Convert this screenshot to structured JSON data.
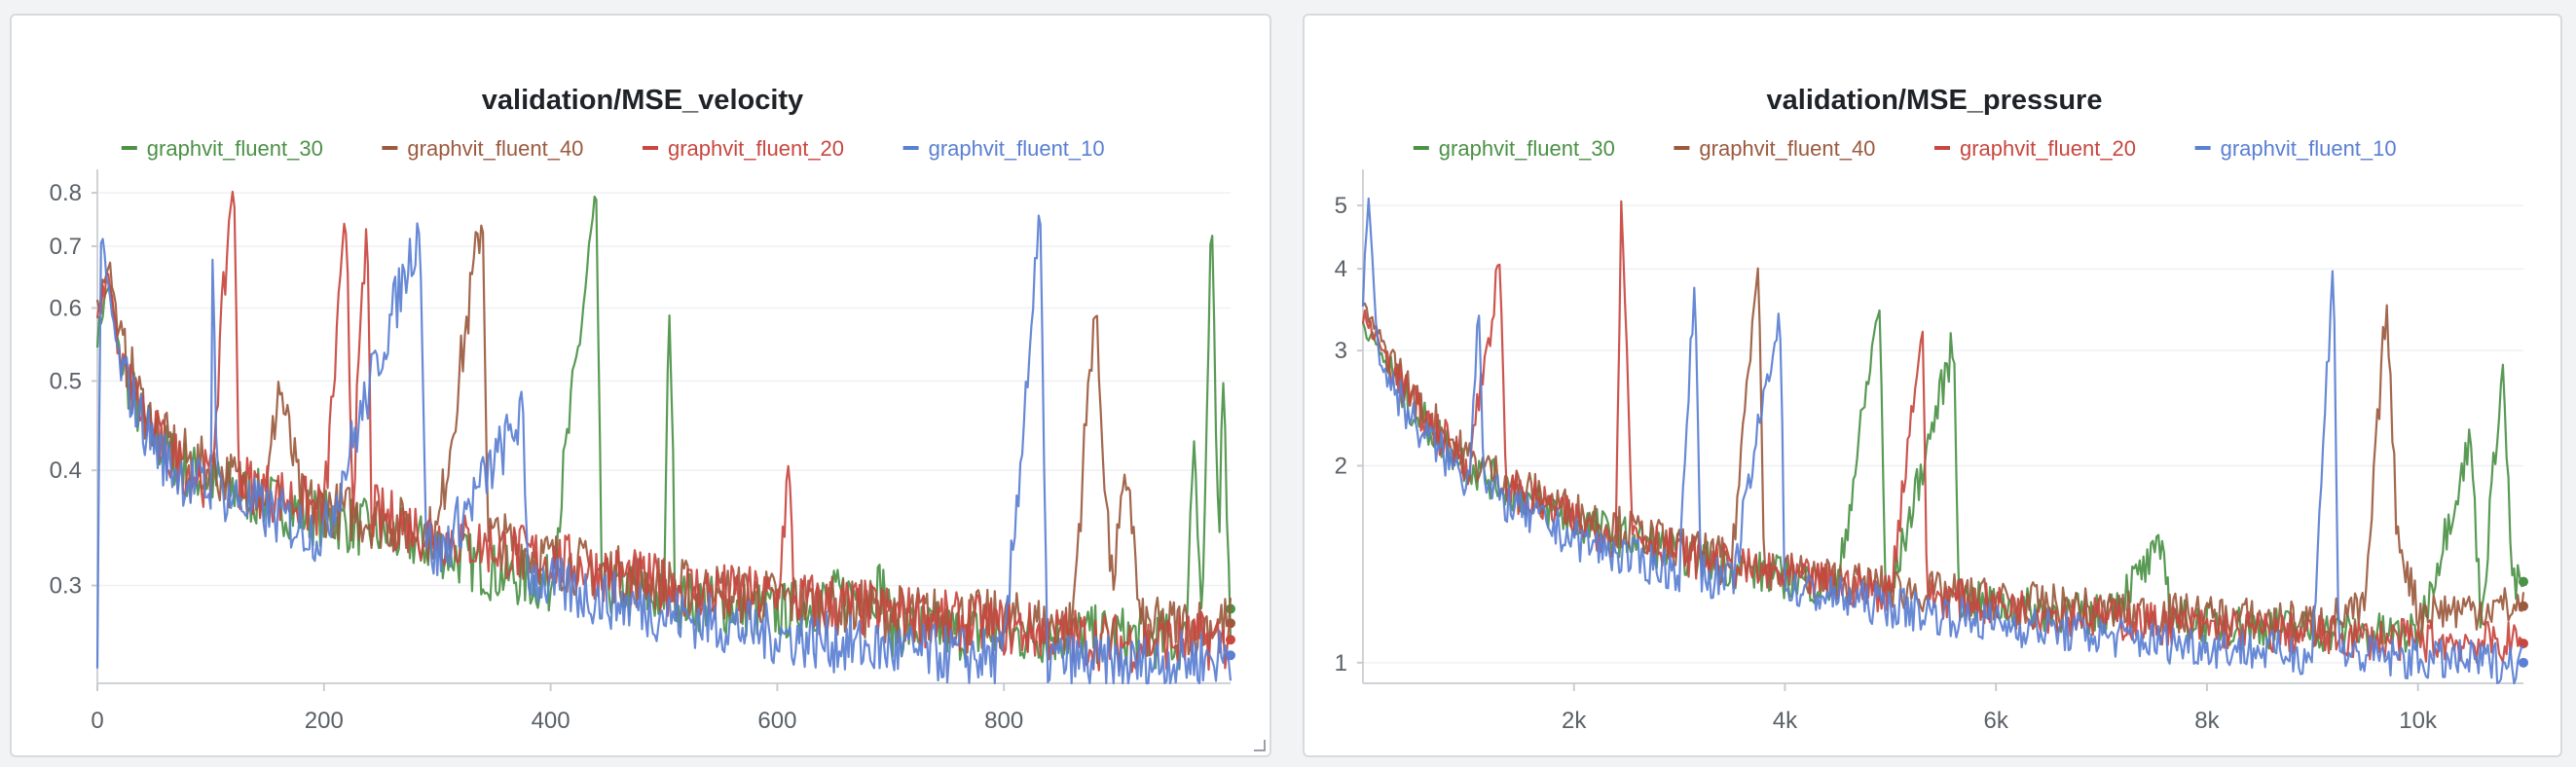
{
  "chart_data": [
    {
      "type": "line",
      "title": "validation/MSE_velocity",
      "xlabel": "",
      "ylabel": "",
      "y_scale": "log",
      "xlim": [
        0,
        1000
      ],
      "ylim": [
        0.235,
        0.84
      ],
      "x_ticks": [
        0,
        200,
        400,
        600,
        800
      ],
      "x_tick_labels": [
        "0",
        "200",
        "400",
        "600",
        "800"
      ],
      "y_ticks": [
        0.3,
        0.4,
        0.5,
        0.6,
        0.7,
        0.8
      ],
      "y_tick_labels": [
        "0.3",
        "0.4",
        "0.5",
        "0.6",
        "0.7",
        "0.8"
      ],
      "grid": true,
      "legend_position": "top",
      "series": [
        {
          "name": "graphvit_fluent_30",
          "color": "#4b9146",
          "points": [
            [
              0,
              0.56
            ],
            [
              10,
              0.64
            ],
            [
              20,
              0.53
            ],
            [
              40,
              0.45
            ],
            [
              60,
              0.42
            ],
            [
              80,
              0.4
            ],
            [
              100,
              0.39
            ],
            [
              120,
              0.38
            ],
            [
              150,
              0.37
            ],
            [
              180,
              0.36
            ],
            [
              220,
              0.35
            ],
            [
              260,
              0.34
            ],
            [
              300,
              0.33
            ],
            [
              350,
              0.31
            ],
            [
              400,
              0.3
            ],
            [
              440,
              0.79
            ],
            [
              445,
              0.3
            ],
            [
              500,
              0.29
            ],
            [
              505,
              0.64
            ],
            [
              510,
              0.29
            ],
            [
              600,
              0.28
            ],
            [
              695,
              0.3
            ],
            [
              700,
              0.27
            ],
            [
              800,
              0.265
            ],
            [
              900,
              0.265
            ],
            [
              960,
              0.26
            ],
            [
              968,
              0.45
            ],
            [
              975,
              0.27
            ],
            [
              983,
              0.76
            ],
            [
              990,
              0.3
            ],
            [
              993,
              0.53
            ],
            [
              1000,
              0.283
            ]
          ]
        },
        {
          "name": "graphvit_fluent_40",
          "color": "#9b5a3e",
          "points": [
            [
              0,
              0.6
            ],
            [
              10,
              0.68
            ],
            [
              20,
              0.55
            ],
            [
              40,
              0.47
            ],
            [
              60,
              0.43
            ],
            [
              80,
              0.41
            ],
            [
              100,
              0.4
            ],
            [
              120,
              0.39
            ],
            [
              150,
              0.38
            ],
            [
              160,
              0.5
            ],
            [
              180,
              0.37
            ],
            [
              220,
              0.36
            ],
            [
              260,
              0.35
            ],
            [
              300,
              0.34
            ],
            [
              340,
              0.77
            ],
            [
              345,
              0.34
            ],
            [
              400,
              0.32
            ],
            [
              500,
              0.3
            ],
            [
              600,
              0.29
            ],
            [
              700,
              0.28
            ],
            [
              800,
              0.275
            ],
            [
              860,
              0.27
            ],
            [
              880,
              0.61
            ],
            [
              895,
              0.3
            ],
            [
              910,
              0.4
            ],
            [
              920,
              0.27
            ],
            [
              1000,
              0.273
            ]
          ]
        },
        {
          "name": "graphvit_fluent_20",
          "color": "#c8473f",
          "points": [
            [
              0,
              0.58
            ],
            [
              10,
              0.66
            ],
            [
              20,
              0.52
            ],
            [
              40,
              0.46
            ],
            [
              60,
              0.42
            ],
            [
              80,
              0.4
            ],
            [
              100,
              0.39
            ],
            [
              120,
              0.86
            ],
            [
              125,
              0.39
            ],
            [
              150,
              0.38
            ],
            [
              200,
              0.36
            ],
            [
              220,
              0.76
            ],
            [
              225,
              0.37
            ],
            [
              238,
              0.75
            ],
            [
              242,
              0.36
            ],
            [
              300,
              0.34
            ],
            [
              400,
              0.32
            ],
            [
              500,
              0.3
            ],
            [
              600,
              0.29
            ],
            [
              610,
              0.4
            ],
            [
              615,
              0.29
            ],
            [
              700,
              0.28
            ],
            [
              800,
              0.27
            ],
            [
              900,
              0.26
            ],
            [
              1000,
              0.262
            ]
          ]
        },
        {
          "name": "graphvit_fluent_10",
          "color": "#5a7fd3",
          "points": [
            [
              0,
              0.25
            ],
            [
              3,
              0.72
            ],
            [
              10,
              0.62
            ],
            [
              20,
              0.52
            ],
            [
              40,
              0.45
            ],
            [
              60,
              0.41
            ],
            [
              80,
              0.39
            ],
            [
              100,
              0.38
            ],
            [
              102,
              0.74
            ],
            [
              106,
              0.38
            ],
            [
              150,
              0.36
            ],
            [
              200,
              0.34
            ],
            [
              285,
              0.74
            ],
            [
              290,
              0.34
            ],
            [
              300,
              0.32
            ],
            [
              375,
              0.46
            ],
            [
              380,
              0.31
            ],
            [
              400,
              0.3
            ],
            [
              500,
              0.28
            ],
            [
              600,
              0.265
            ],
            [
              700,
              0.255
            ],
            [
              800,
              0.25
            ],
            [
              832,
              0.75
            ],
            [
              838,
              0.25
            ],
            [
              900,
              0.245
            ],
            [
              1000,
              0.252
            ]
          ]
        }
      ]
    },
    {
      "type": "line",
      "title": "validation/MSE_pressure",
      "xlabel": "",
      "ylabel": "",
      "y_scale": "log",
      "xlim": [
        0,
        11000
      ],
      "ylim": [
        0.93,
        5.6
      ],
      "x_ticks": [
        2000,
        4000,
        6000,
        8000,
        10000
      ],
      "x_tick_labels": [
        "2k",
        "4k",
        "6k",
        "8k",
        "10k"
      ],
      "y_ticks": [
        1,
        2,
        3,
        4,
        5
      ],
      "y_tick_labels": [
        "1",
        "2",
        "3",
        "4",
        "5"
      ],
      "grid": true,
      "legend_position": "top",
      "series": [
        {
          "name": "graphvit_fluent_30",
          "color": "#4b9146",
          "points": [
            [
              0,
              3.3
            ],
            [
              500,
              2.4
            ],
            [
              1000,
              2.0
            ],
            [
              1500,
              1.8
            ],
            [
              2000,
              1.65
            ],
            [
              2500,
              1.55
            ],
            [
              3000,
              1.47
            ],
            [
              3500,
              1.4
            ],
            [
              4000,
              1.35
            ],
            [
              4500,
              1.3
            ],
            [
              4900,
              3.6
            ],
            [
              4950,
              1.3
            ],
            [
              5000,
              1.27
            ],
            [
              5600,
              3.1
            ],
            [
              5650,
              1.25
            ],
            [
              6000,
              1.22
            ],
            [
              7000,
              1.18
            ],
            [
              7600,
              1.5
            ],
            [
              7650,
              1.17
            ],
            [
              8000,
              1.15
            ],
            [
              9000,
              1.12
            ],
            [
              10000,
              1.1
            ],
            [
              10500,
              2.2
            ],
            [
              10600,
              1.15
            ],
            [
              10800,
              2.9
            ],
            [
              10900,
              1.3
            ],
            [
              11000,
              1.33
            ]
          ]
        },
        {
          "name": "graphvit_fluent_40",
          "color": "#9b5a3e",
          "points": [
            [
              0,
              3.5
            ],
            [
              500,
              2.5
            ],
            [
              1000,
              2.05
            ],
            [
              1500,
              1.85
            ],
            [
              2000,
              1.7
            ],
            [
              2500,
              1.6
            ],
            [
              3000,
              1.5
            ],
            [
              3500,
              1.43
            ],
            [
              3750,
              4.4
            ],
            [
              3800,
              1.4
            ],
            [
              4000,
              1.38
            ],
            [
              5000,
              1.3
            ],
            [
              6000,
              1.25
            ],
            [
              7000,
              1.2
            ],
            [
              8000,
              1.18
            ],
            [
              9000,
              1.15
            ],
            [
              9500,
              1.2
            ],
            [
              9700,
              3.6
            ],
            [
              9800,
              1.6
            ],
            [
              10000,
              1.2
            ],
            [
              11000,
              1.22
            ]
          ]
        },
        {
          "name": "graphvit_fluent_20",
          "color": "#c8473f",
          "points": [
            [
              0,
              3.4
            ],
            [
              500,
              2.45
            ],
            [
              1000,
              2.0
            ],
            [
              1300,
              4.1
            ],
            [
              1350,
              1.9
            ],
            [
              1500,
              1.8
            ],
            [
              2000,
              1.65
            ],
            [
              2400,
              1.55
            ],
            [
              2450,
              5.6
            ],
            [
              2550,
              1.6
            ],
            [
              3000,
              1.47
            ],
            [
              3500,
              1.4
            ],
            [
              4000,
              1.35
            ],
            [
              5000,
              1.28
            ],
            [
              5300,
              3.3
            ],
            [
              5350,
              1.27
            ],
            [
              6000,
              1.22
            ],
            [
              7000,
              1.17
            ],
            [
              8000,
              1.13
            ],
            [
              9000,
              1.1
            ],
            [
              10000,
              1.08
            ],
            [
              11000,
              1.07
            ]
          ]
        },
        {
          "name": "graphvit_fluent_10",
          "color": "#5a7fd3",
          "points": [
            [
              0,
              3.6
            ],
            [
              50,
              5.2
            ],
            [
              150,
              2.9
            ],
            [
              500,
              2.3
            ],
            [
              1000,
              1.9
            ],
            [
              1100,
              3.6
            ],
            [
              1150,
              1.85
            ],
            [
              1500,
              1.7
            ],
            [
              2000,
              1.55
            ],
            [
              2500,
              1.45
            ],
            [
              3000,
              1.38
            ],
            [
              3150,
              4.0
            ],
            [
              3200,
              1.37
            ],
            [
              3500,
              1.32
            ],
            [
              3950,
              3.5
            ],
            [
              4000,
              1.3
            ],
            [
              5000,
              1.22
            ],
            [
              6000,
              1.15
            ],
            [
              7000,
              1.1
            ],
            [
              8000,
              1.06
            ],
            [
              9000,
              1.03
            ],
            [
              9200,
              4.3
            ],
            [
              9250,
              1.03
            ],
            [
              10000,
              1.01
            ],
            [
              11000,
              1.0
            ]
          ]
        }
      ]
    }
  ]
}
